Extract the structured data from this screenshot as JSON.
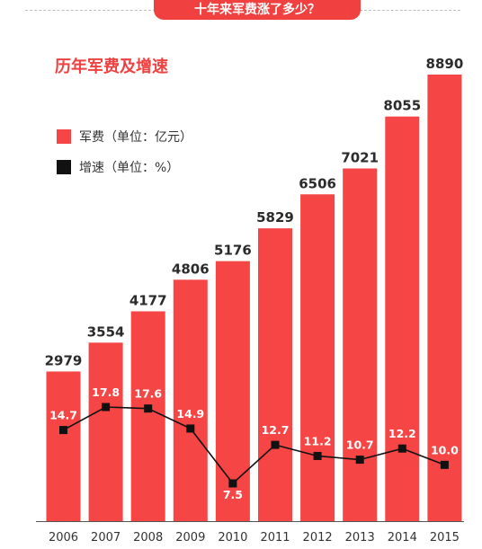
{
  "header": {
    "title": "十年来军费涨了多少？"
  },
  "chart_data": {
    "type": "bar",
    "title": "历年军费及增速",
    "categories": [
      "2006",
      "2007",
      "2008",
      "2009",
      "2010",
      "2011",
      "2012",
      "2013",
      "2014",
      "2015"
    ],
    "series": [
      {
        "name": "军费（单位：亿元）",
        "kind": "bar",
        "color": "#f54545",
        "values": [
          2979,
          3554,
          4177,
          4806,
          5176,
          5829,
          6506,
          7021,
          8055,
          8890
        ]
      },
      {
        "name": "增速（单位：%）",
        "kind": "line",
        "color": "#111111",
        "values": [
          14.7,
          17.8,
          17.6,
          14.9,
          7.5,
          12.7,
          11.2,
          10.7,
          12.2,
          10.0
        ]
      }
    ],
    "legend_position": "top-left",
    "grid": false
  }
}
